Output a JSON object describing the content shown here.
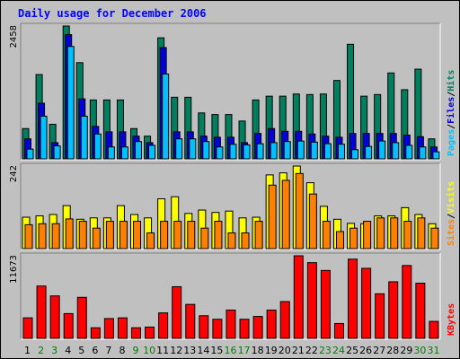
{
  "title": "Daily usage for December 2006",
  "colors": {
    "hits": "#007f5f",
    "files": "#0000d8",
    "pages": "#00c0ff",
    "visits": "#ffff00",
    "sites": "#ff8000",
    "kbytes": "#ff0000",
    "weekday": "#000000",
    "weekend": "#008000"
  },
  "chart_data": [
    {
      "type": "bar",
      "categories": [
        "1",
        "2",
        "3",
        "4",
        "5",
        "6",
        "7",
        "8",
        "9",
        "10",
        "11",
        "12",
        "13",
        "14",
        "15",
        "16",
        "17",
        "18",
        "19",
        "20",
        "21",
        "22",
        "23",
        "24",
        "25",
        "26",
        "27",
        "28",
        "29",
        "30",
        "31"
      ],
      "weekend_days": [
        "2",
        "3",
        "9",
        "10",
        "16",
        "17",
        "23",
        "24",
        "30",
        "31"
      ],
      "ylim": [
        0,
        2458
      ],
      "max_label": "2458",
      "series": [
        {
          "name": "Hits",
          "values": [
            560,
            1560,
            640,
            2458,
            1780,
            1090,
            1090,
            1090,
            560,
            420,
            2240,
            1140,
            1140,
            850,
            820,
            820,
            700,
            1090,
            1160,
            1160,
            1200,
            1190,
            1200,
            1450,
            2120,
            1160,
            1190,
            1590,
            1280,
            1660,
            370
          ]
        },
        {
          "name": "Files",
          "values": [
            370,
            1030,
            300,
            2300,
            1110,
            600,
            500,
            500,
            420,
            300,
            2060,
            500,
            500,
            420,
            400,
            400,
            300,
            470,
            560,
            510,
            510,
            460,
            420,
            400,
            470,
            470,
            470,
            470,
            440,
            410,
            220
          ]
        },
        {
          "name": "Pages",
          "values": [
            180,
            790,
            240,
            2080,
            790,
            460,
            220,
            220,
            320,
            250,
            1570,
            370,
            370,
            320,
            220,
            270,
            260,
            280,
            300,
            320,
            330,
            310,
            280,
            270,
            170,
            230,
            330,
            300,
            250,
            220,
            130
          ]
        }
      ],
      "axis_label": [
        "Pages",
        "/",
        "Files",
        "/",
        "Hits"
      ]
    },
    {
      "type": "bar",
      "categories": [
        "1",
        "2",
        "3",
        "4",
        "5",
        "6",
        "7",
        "8",
        "9",
        "10",
        "11",
        "12",
        "13",
        "14",
        "15",
        "16",
        "17",
        "18",
        "19",
        "20",
        "21",
        "22",
        "23",
        "24",
        "25",
        "26",
        "27",
        "28",
        "29",
        "30",
        "31"
      ],
      "ylim": [
        0,
        242
      ],
      "max_label": "242",
      "series": [
        {
          "name": "Visits",
          "values": [
            92,
            96,
            100,
            126,
            86,
            90,
            90,
            126,
            100,
            90,
            146,
            152,
            103,
            113,
            106,
            110,
            90,
            92,
            216,
            222,
            242,
            193,
            124,
            86,
            74,
            73,
            96,
            96,
            120,
            100,
            73
          ]
        },
        {
          "name": "Sites",
          "values": [
            70,
            73,
            73,
            87,
            80,
            60,
            80,
            80,
            80,
            46,
            80,
            80,
            80,
            60,
            80,
            46,
            46,
            80,
            186,
            200,
            220,
            160,
            80,
            50,
            60,
            80,
            90,
            90,
            80,
            90,
            60
          ]
        }
      ],
      "axis_label": [
        "Sites",
        "/",
        "Visits"
      ]
    },
    {
      "type": "bar",
      "categories": [
        "1",
        "2",
        "3",
        "4",
        "5",
        "6",
        "7",
        "8",
        "9",
        "10",
        "11",
        "12",
        "13",
        "14",
        "15",
        "16",
        "17",
        "18",
        "19",
        "20",
        "21",
        "22",
        "23",
        "24",
        "25",
        "26",
        "27",
        "28",
        "29",
        "30",
        "31"
      ],
      "ylim": [
        0,
        11673
      ],
      "max_label": "11673",
      "series": [
        {
          "name": "KBytes",
          "values": [
            2900,
            7400,
            6000,
            3500,
            5800,
            1500,
            2800,
            2900,
            1500,
            1600,
            3600,
            7300,
            4800,
            3200,
            2700,
            4000,
            2700,
            3100,
            4000,
            5200,
            11673,
            10700,
            9600,
            2100,
            11200,
            9900,
            6300,
            8000,
            10300,
            7800,
            2400
          ]
        }
      ],
      "axis_label": [
        "KBytes"
      ]
    }
  ]
}
